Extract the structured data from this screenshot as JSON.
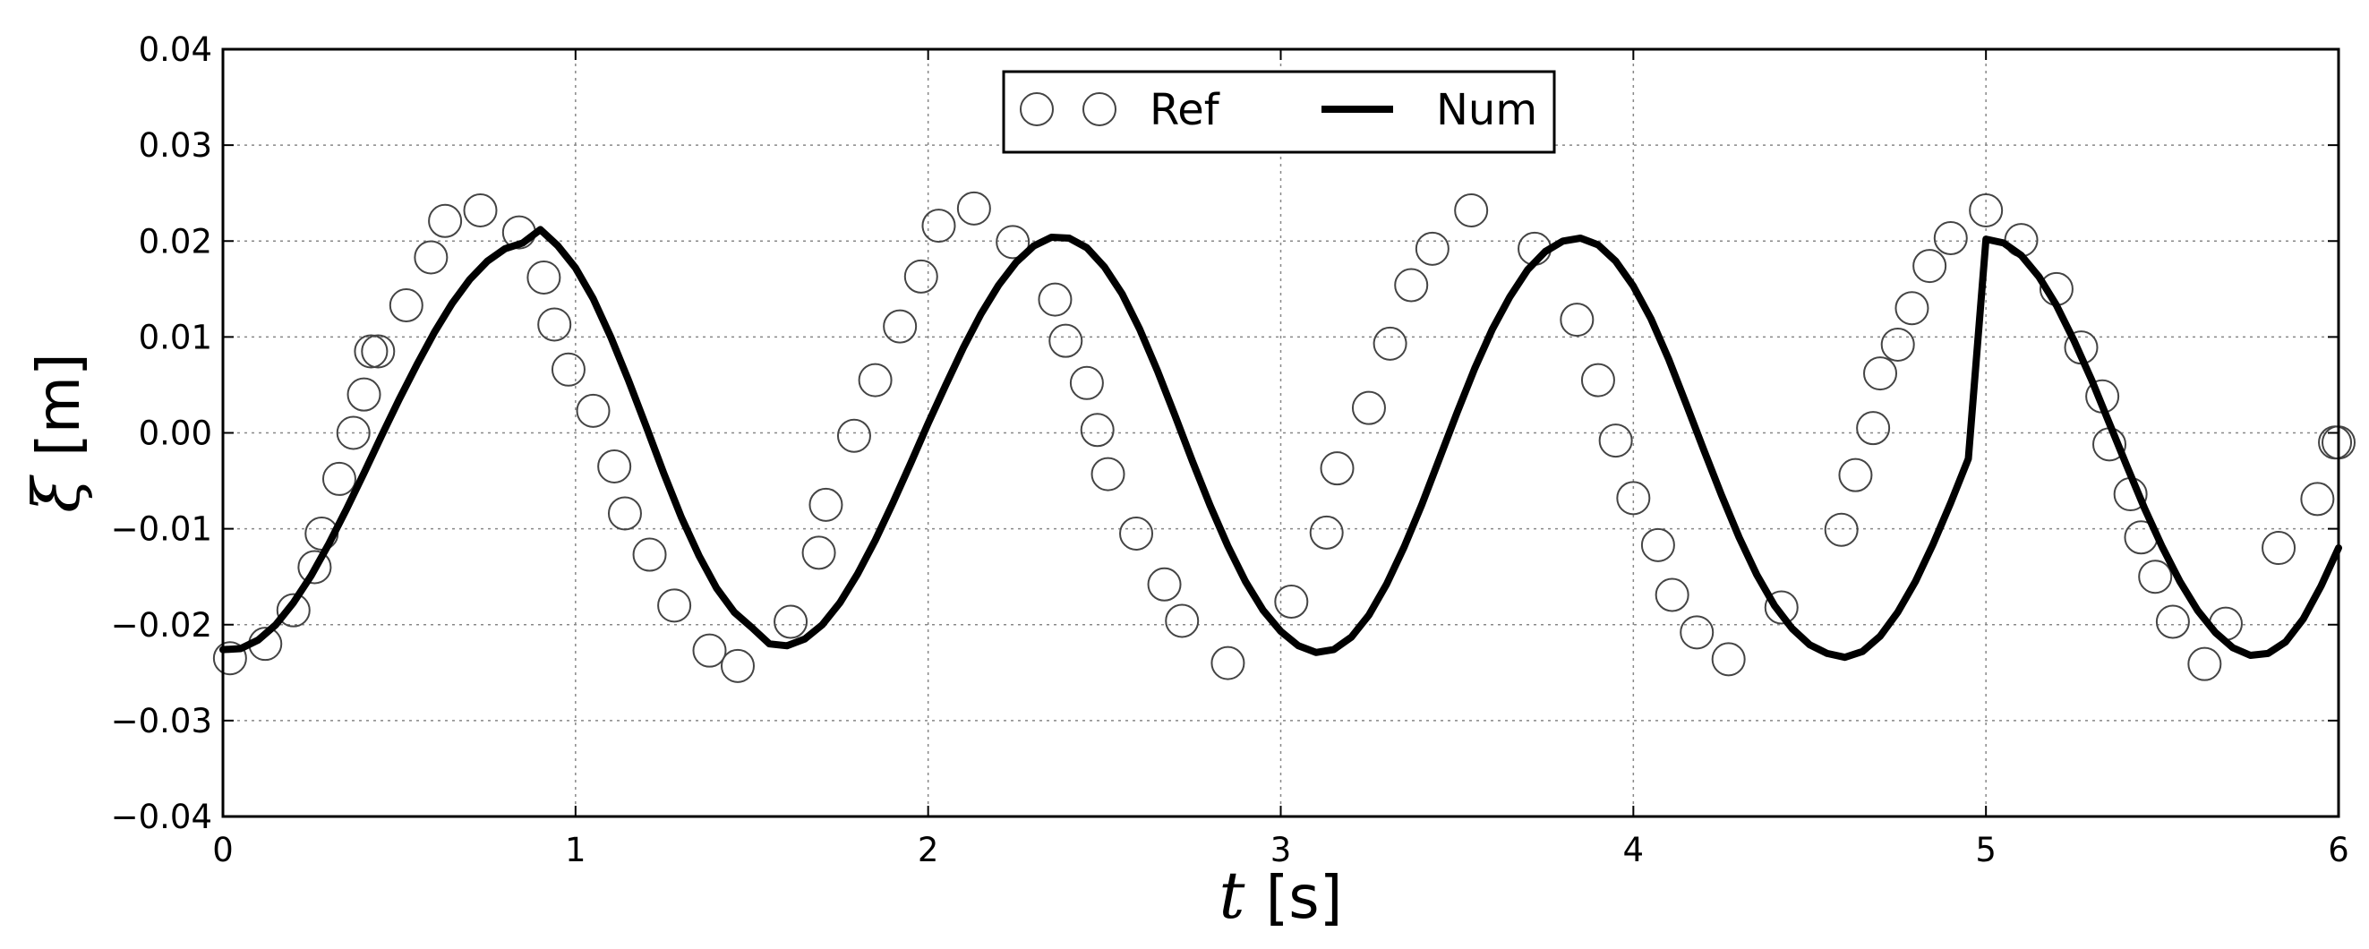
{
  "chart_data": {
    "type": "line",
    "xlabel_symbol": "t",
    "xlabel_unit": "[s]",
    "ylabel_symbol": "ξ",
    "ylabel_unit": "[m]",
    "xlim": [
      0,
      6
    ],
    "ylim": [
      -0.04,
      0.04
    ],
    "xticks": [
      0,
      1,
      2,
      3,
      4,
      5,
      6
    ],
    "xtick_labels": [
      "0",
      "1",
      "2",
      "3",
      "4",
      "5",
      "6"
    ],
    "yticks": [
      -0.04,
      -0.03,
      -0.02,
      -0.01,
      0.0,
      0.01,
      0.02,
      0.03,
      0.04
    ],
    "ytick_labels": [
      "−0.04",
      "−0.03",
      "−0.02",
      "−0.01",
      "0.00",
      "0.01",
      "0.02",
      "0.03",
      "0.04"
    ],
    "grid": true,
    "legend_position": "top-center",
    "colors": {
      "line": "#000000",
      "marker_edge": "#444444",
      "grid": "#888888"
    },
    "series": [
      {
        "name": "Ref",
        "style": "markers",
        "marker": "open-circle",
        "x": [
          0.02,
          0.12,
          0.2,
          0.26,
          0.28,
          0.33,
          0.37,
          0.4,
          0.42,
          0.44,
          0.52,
          0.59,
          0.63,
          0.73,
          0.84,
          0.91,
          0.94,
          0.98,
          1.05,
          1.11,
          1.14,
          1.21,
          1.28,
          1.38,
          1.46,
          1.61,
          1.69,
          1.71,
          1.79,
          1.85,
          1.92,
          1.98,
          2.03,
          2.13,
          2.24,
          2.36,
          2.39,
          2.45,
          2.48,
          2.51,
          2.59,
          2.67,
          2.72,
          2.85,
          3.03,
          3.13,
          3.16,
          3.25,
          3.31,
          3.37,
          3.43,
          3.54,
          3.72,
          3.84,
          3.9,
          3.95,
          4.0,
          4.07,
          4.11,
          4.18,
          4.27,
          4.42,
          4.59,
          4.63,
          4.68,
          4.7,
          4.75,
          4.79,
          4.84,
          4.9,
          5.0,
          5.1,
          5.2,
          5.27,
          5.33,
          5.35,
          5.41,
          5.44,
          5.48,
          5.53,
          5.62,
          5.68,
          5.83,
          5.94,
          5.99,
          6.0
        ],
        "y": [
          -0.0235,
          -0.022,
          -0.0185,
          -0.014,
          -0.0105,
          -0.0048,
          0.0,
          0.004,
          0.0085,
          0.0085,
          0.0133,
          0.0183,
          0.0221,
          0.0232,
          0.0209,
          0.0162,
          0.0113,
          0.0066,
          0.0023,
          -0.0035,
          -0.0084,
          -0.0127,
          -0.018,
          -0.0227,
          -0.0243,
          -0.0197,
          -0.0125,
          -0.0075,
          -0.0003,
          0.0055,
          0.0111,
          0.0163,
          0.0216,
          0.0234,
          0.0199,
          0.0139,
          0.0096,
          0.0052,
          0.0003,
          -0.0043,
          -0.0105,
          -0.0158,
          -0.0196,
          -0.024,
          -0.0176,
          -0.0104,
          -0.0037,
          0.0026,
          0.0093,
          0.0154,
          0.0192,
          0.0232,
          0.0192,
          0.0118,
          0.0055,
          -0.0008,
          -0.0068,
          -0.0117,
          -0.0169,
          -0.0208,
          -0.0236,
          -0.0182,
          -0.0101,
          -0.0044,
          0.0005,
          0.0062,
          0.0092,
          0.013,
          0.0174,
          0.0203,
          0.0232,
          0.0201,
          0.015,
          0.0089,
          0.0038,
          -0.0012,
          -0.0064,
          -0.0109,
          -0.015,
          -0.0197,
          -0.0241,
          -0.0199,
          -0.012,
          -0.0069,
          -0.001,
          -0.001
        ]
      },
      {
        "name": "Num",
        "style": "line",
        "x": [
          0.0,
          0.05,
          0.1,
          0.15,
          0.2,
          0.25,
          0.3,
          0.35,
          0.4,
          0.45,
          0.5,
          0.55,
          0.6,
          0.65,
          0.7,
          0.75,
          0.8,
          0.85,
          0.9,
          0.95,
          1.0,
          1.05,
          1.1,
          1.15,
          1.2,
          1.25,
          1.3,
          1.35,
          1.4,
          1.45,
          1.5,
          1.55,
          1.6,
          1.65,
          1.7,
          1.75,
          1.8,
          1.85,
          1.9,
          1.95,
          2.0,
          2.05,
          2.1,
          2.15,
          2.2,
          2.25,
          2.3,
          2.35,
          2.4,
          2.45,
          2.5,
          2.55,
          2.6,
          2.65,
          2.7,
          2.75,
          2.8,
          2.85,
          2.9,
          2.95,
          3.0,
          3.05,
          3.1,
          3.15,
          3.2,
          3.25,
          3.3,
          3.35,
          3.4,
          3.45,
          3.5,
          3.55,
          3.6,
          3.65,
          3.7,
          3.75,
          3.8,
          3.85,
          3.9,
          3.95,
          4.0,
          4.05,
          4.1,
          4.15,
          4.2,
          4.25,
          4.3,
          4.35,
          4.4,
          4.45,
          4.5,
          4.55,
          4.6,
          4.65,
          4.7,
          4.75,
          4.8,
          4.85,
          4.9,
          4.95,
          5.0,
          5.05,
          5.1,
          5.15,
          5.2,
          5.25,
          5.3,
          5.35,
          5.4,
          5.45,
          5.5,
          5.55,
          5.6,
          5.65,
          5.7,
          5.75,
          5.8,
          5.85,
          5.9,
          5.95,
          6.0
        ],
        "y": [
          -0.0226,
          -0.0225,
          -0.0216,
          -0.02,
          -0.0177,
          -0.0149,
          -0.0116,
          -0.008,
          -0.0042,
          -0.0003,
          0.0035,
          0.0071,
          0.0105,
          0.0135,
          0.016,
          0.0179,
          0.0192,
          0.0198,
          0.0212,
          0.0195,
          0.0172,
          0.014,
          0.01,
          0.0055,
          0.0007,
          -0.0042,
          -0.0088,
          -0.0128,
          -0.0162,
          -0.0187,
          -0.0203,
          -0.022,
          -0.0222,
          -0.0215,
          -0.02,
          -0.0177,
          -0.0147,
          -0.0112,
          -0.0073,
          -0.0032,
          0.001,
          0.005,
          0.0089,
          0.0124,
          0.0154,
          0.0178,
          0.0195,
          0.0204,
          0.0203,
          0.0193,
          0.0173,
          0.0145,
          0.0108,
          0.0065,
          0.0018,
          -0.003,
          -0.0076,
          -0.0118,
          -0.0155,
          -0.0185,
          -0.0207,
          -0.0222,
          -0.0229,
          -0.0226,
          -0.0213,
          -0.019,
          -0.0158,
          -0.0119,
          -0.0075,
          -0.0027,
          0.0021,
          0.0067,
          0.0108,
          0.0142,
          0.017,
          0.0189,
          0.02,
          0.0203,
          0.0196,
          0.0179,
          0.0153,
          0.0119,
          0.0077,
          0.003,
          -0.0018,
          -0.0065,
          -0.0109,
          -0.0148,
          -0.018,
          -0.0204,
          -0.0221,
          -0.023,
          -0.0234,
          -0.0228,
          -0.0212,
          -0.0187,
          -0.0155,
          -0.0116,
          -0.0073,
          -0.0027,
          0.0202,
          0.0198,
          0.0185,
          0.0163,
          0.0133,
          0.0096,
          0.0055,
          0.001,
          -0.0035,
          -0.0079,
          -0.0119,
          -0.0155,
          -0.0185,
          -0.0208,
          -0.0224,
          -0.0232,
          -0.023,
          -0.0218,
          -0.0194,
          -0.016,
          -0.012
        ]
      }
    ]
  }
}
